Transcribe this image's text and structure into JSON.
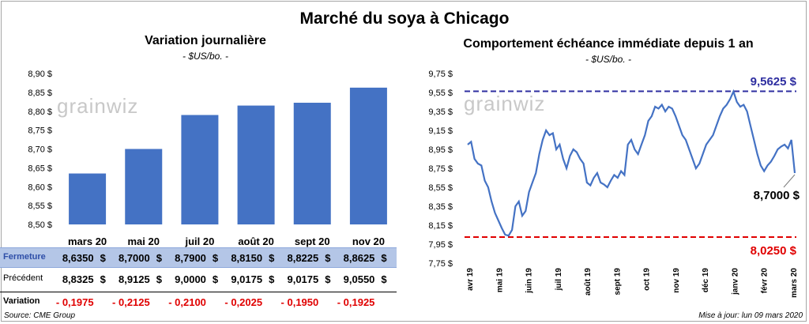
{
  "title": "Marché du soya à Chicago",
  "left": {
    "title": "Variation  journalière",
    "subtitle": "- $US/bo. -"
  },
  "right": {
    "title": "Comportement  échéance immédiate depuis 1 an",
    "subtitle": "- $US/bo. -"
  },
  "watermark": "grainwiz",
  "table": {
    "row_labels": [
      "Fermeture",
      "Précédent",
      "Variation"
    ],
    "currency": "$",
    "close": [
      "8,6350",
      "8,7000",
      "8,7900",
      "8,8150",
      "8,8225",
      "8,8625"
    ],
    "previous": [
      "8,8325",
      "8,9125",
      "9,0000",
      "9,0175",
      "9,0175",
      "9,0550"
    ],
    "change": [
      "- 0,1975",
      "- 0,2125",
      "- 0,2100",
      "- 0,2025",
      "- 0,1950",
      "- 0,1925"
    ]
  },
  "footer": {
    "source": "Source: CME Group",
    "updated": "Mise à jour: lun 09 mars 2020"
  },
  "colors": {
    "bar": "#4472c4",
    "line": "#4472c4",
    "high_line": "#2e2ea0",
    "low_line": "#e00000",
    "close_row": "#b4c6e7"
  },
  "chart_data": [
    {
      "type": "bar",
      "categories": [
        "mars 20",
        "mai 20",
        "juil 20",
        "août 20",
        "sept 20",
        "nov 20"
      ],
      "values": [
        8.635,
        8.7,
        8.79,
        8.815,
        8.8225,
        8.8625
      ],
      "ylim": [
        8.5,
        8.9
      ],
      "yticks": [
        "8,50 $",
        "8,55 $",
        "8,60 $",
        "8,65 $",
        "8,70 $",
        "8,75 $",
        "8,80 $",
        "8,85 $",
        "8,90 $"
      ],
      "grid": false
    },
    {
      "type": "line",
      "x_labels": [
        "avr 19",
        "mai 19",
        "juin 19",
        "juil 19",
        "août 19",
        "sept 19",
        "oct 19",
        "nov 19",
        "déc 19",
        "janv 20",
        "févr 20",
        "mars 20"
      ],
      "ylim": [
        7.75,
        9.75
      ],
      "yticks": [
        "7,75 $",
        "7,95 $",
        "8,15 $",
        "8,35 $",
        "8,55 $",
        "8,75 $",
        "8,95 $",
        "9,15 $",
        "9,35 $",
        "9,55 $",
        "9,75 $"
      ],
      "high": {
        "value": 9.5625,
        "label": "9,5625  $"
      },
      "low": {
        "value": 8.025,
        "label": "8,0250  $"
      },
      "last": {
        "value": 8.7,
        "label": "8,7000 $"
      },
      "values": [
        9.0,
        9.03,
        8.85,
        8.8,
        8.78,
        8.62,
        8.55,
        8.4,
        8.28,
        8.2,
        8.12,
        8.05,
        8.04,
        8.1,
        8.35,
        8.4,
        8.25,
        8.3,
        8.5,
        8.6,
        8.7,
        8.9,
        9.05,
        9.15,
        9.1,
        9.12,
        8.95,
        9.0,
        8.85,
        8.75,
        8.88,
        8.95,
        8.92,
        8.85,
        8.8,
        8.6,
        8.57,
        8.65,
        8.7,
        8.6,
        8.58,
        8.55,
        8.62,
        8.68,
        8.65,
        8.72,
        8.68,
        9.0,
        9.05,
        8.95,
        8.9,
        9.0,
        9.1,
        9.25,
        9.3,
        9.4,
        9.38,
        9.42,
        9.35,
        9.4,
        9.38,
        9.3,
        9.2,
        9.1,
        9.05,
        8.95,
        8.85,
        8.75,
        8.8,
        8.9,
        9.0,
        9.05,
        9.1,
        9.2,
        9.3,
        9.38,
        9.42,
        9.48,
        9.56,
        9.45,
        9.4,
        9.42,
        9.35,
        9.2,
        9.05,
        8.9,
        8.78,
        8.72,
        8.78,
        8.82,
        8.88,
        8.95,
        8.98,
        9.0,
        8.96,
        9.05,
        8.7
      ]
    }
  ]
}
